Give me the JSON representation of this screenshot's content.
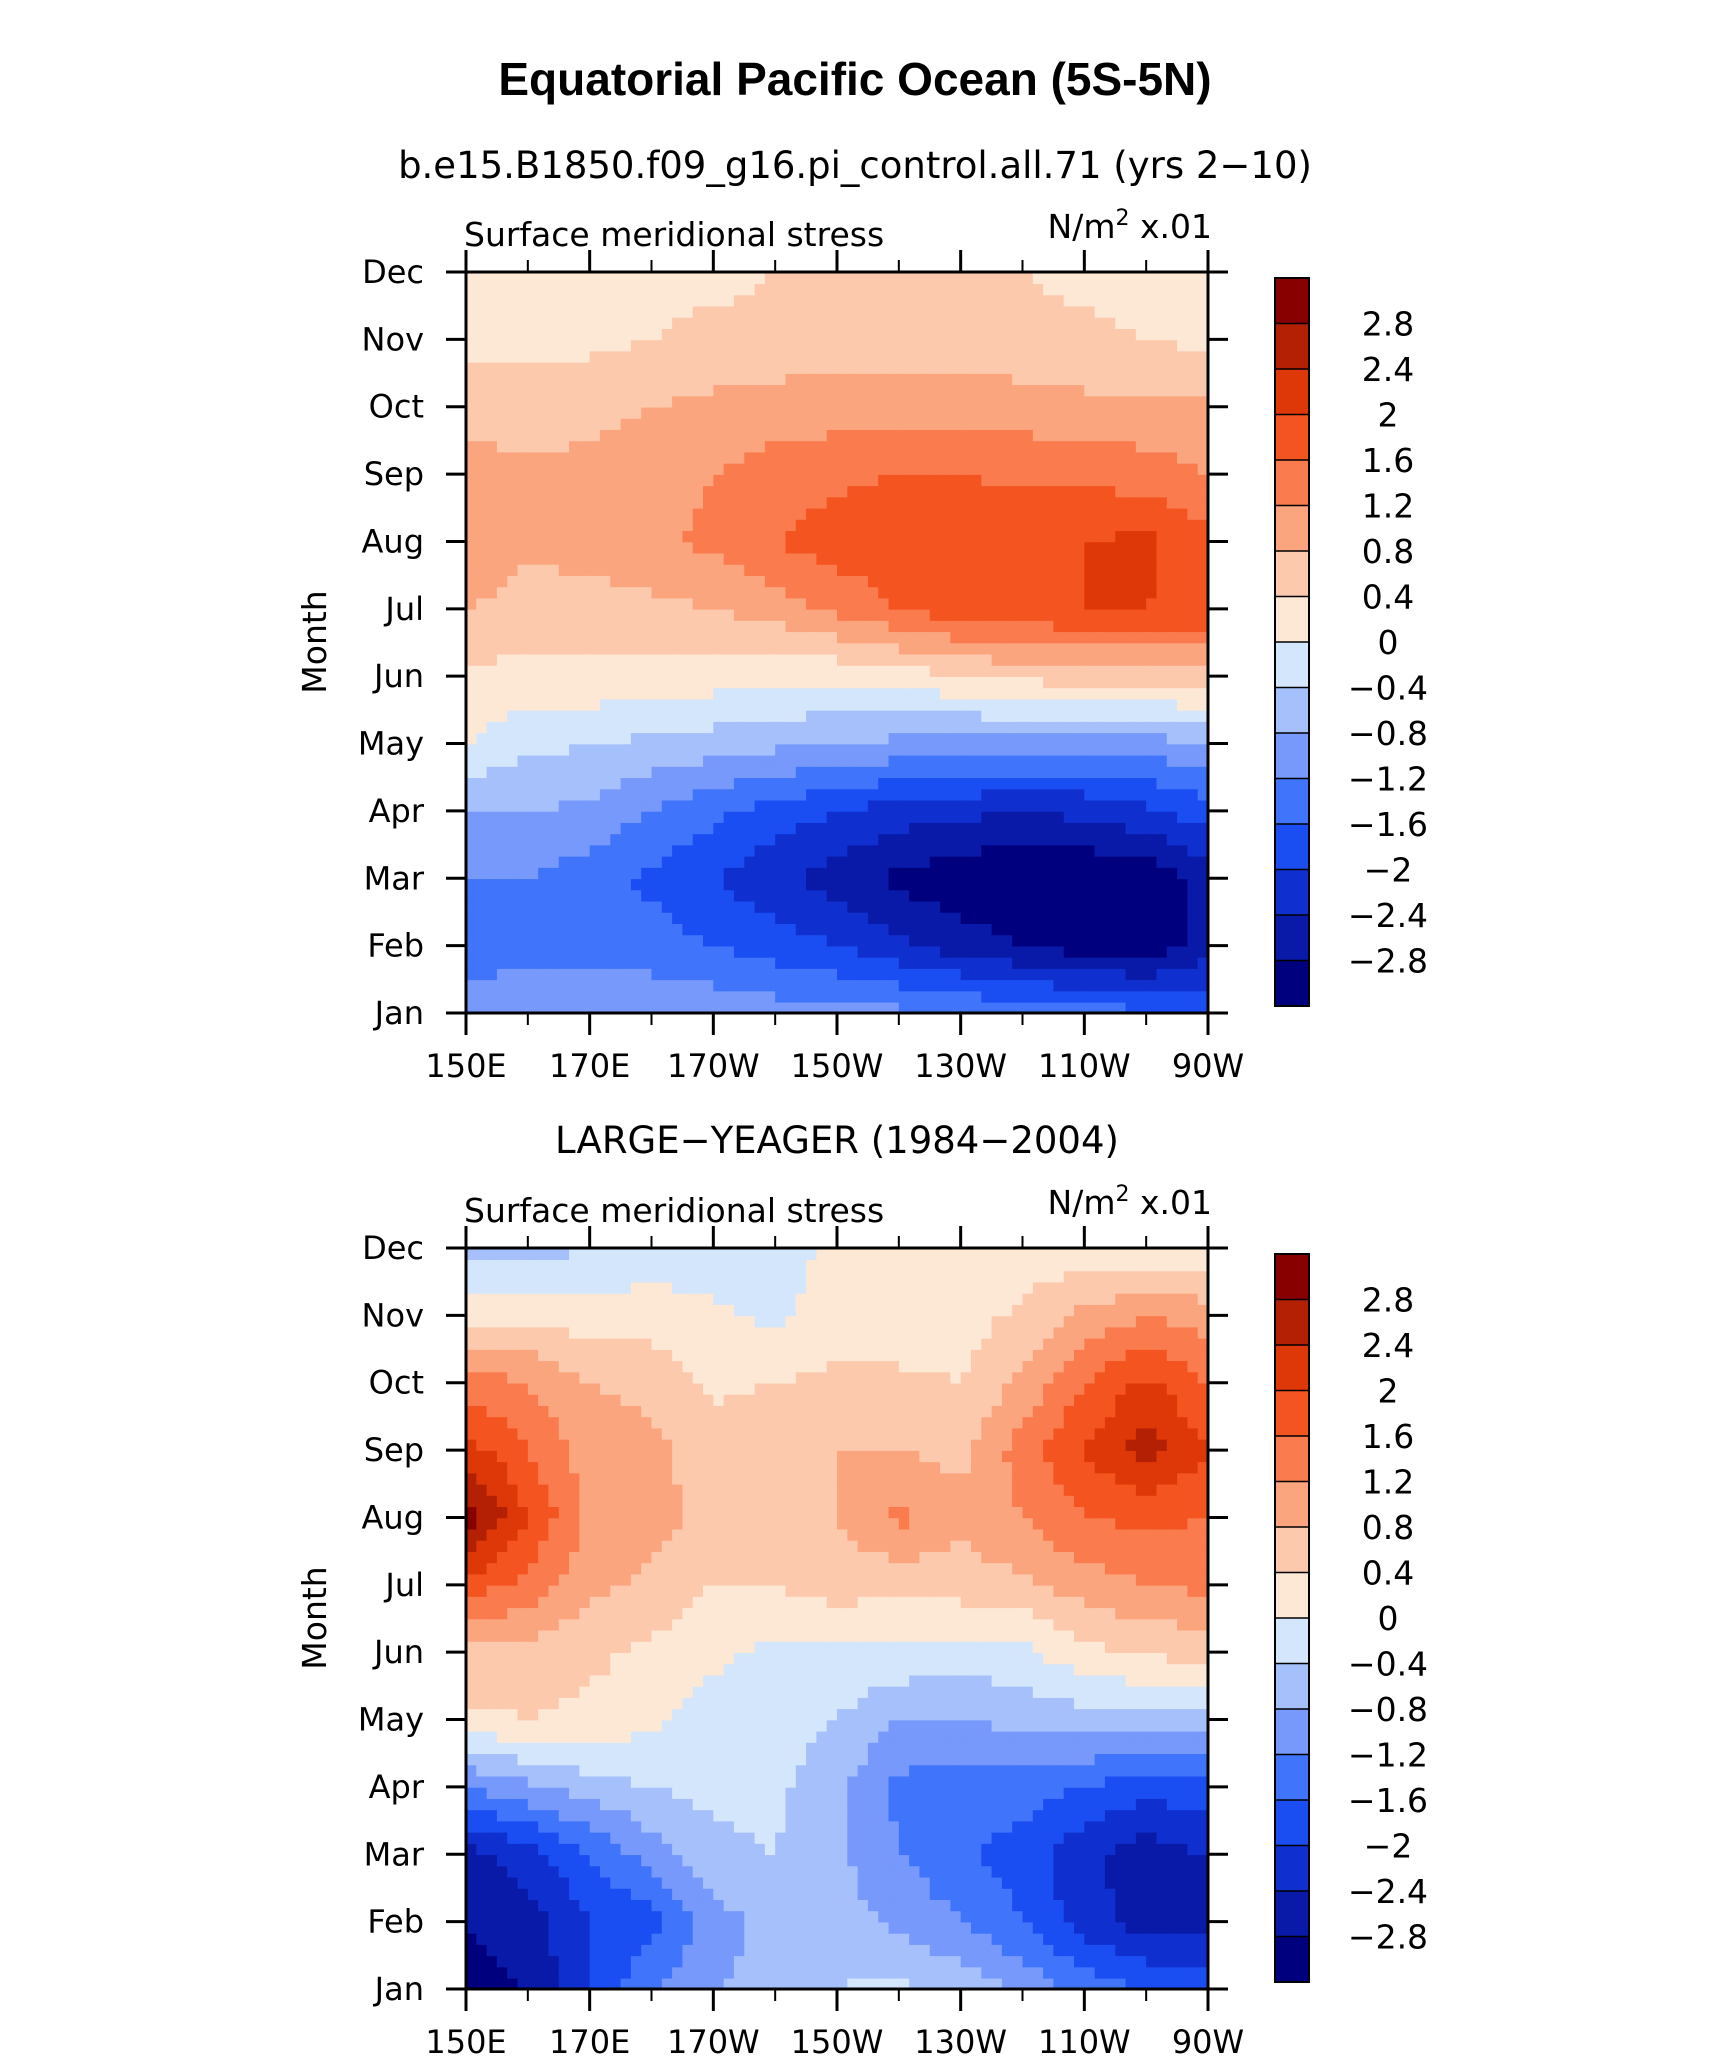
{
  "chart_data": {
    "type": "heatmap",
    "title": "Equatorial Pacific Ocean (5S-5N)",
    "colorbar": {
      "levels": [
        -3.2,
        -2.8,
        -2.4,
        -2,
        -1.6,
        -1.2,
        -0.8,
        -0.4,
        0,
        0.4,
        0.8,
        1.2,
        1.6,
        2,
        2.4,
        2.8,
        3.2
      ],
      "tick_labels": [
        "−2.8",
        "−2.4",
        "−2",
        "−1.6",
        "−1.2",
        "−0.8",
        "−0.4",
        "0",
        "0.4",
        "0.8",
        "1.2",
        "1.6",
        "2",
        "2.4",
        "2.8"
      ],
      "tick_values": [
        -2.8,
        -2.4,
        -2,
        -1.6,
        -1.2,
        -0.8,
        -0.4,
        0,
        0.4,
        0.8,
        1.2,
        1.6,
        2,
        2.4,
        2.8
      ],
      "colors": [
        "#00007f",
        "#0a1aa8",
        "#0f30cf",
        "#1a4ef2",
        "#3f74fb",
        "#7799fb",
        "#a6c0fb",
        "#d4e6fb",
        "#fde8d6",
        "#fcc9ad",
        "#fba57f",
        "#fa7b4d",
        "#f4541f",
        "#df3808",
        "#b32004",
        "#890000"
      ]
    },
    "panels": [
      {
        "title": "b.e15.B1850.f09_g16.pi_control.all.71 (yrs 2−10)",
        "left_string": "Surface meridional stress",
        "right_string_unit": "N/m",
        "right_string_sup": "2",
        "right_string_scale": " x.01",
        "ylabel": "Month",
        "x_ticks": [
          "150E",
          "170E",
          "170W",
          "150W",
          "130W",
          "110W",
          "90W"
        ],
        "x_range": [
          150,
          270
        ],
        "y_ticks": [
          "Jan",
          "Feb",
          "Mar",
          "Apr",
          "May",
          "Jun",
          "Jul",
          "Aug",
          "Sep",
          "Oct",
          "Nov",
          "Dec"
        ],
        "longitudes": [
          150,
          160,
          170,
          180,
          190,
          200,
          210,
          220,
          230,
          240,
          250,
          260,
          270
        ],
        "values": [
          [
            -1.0,
            -1.0,
            -0.9,
            -0.9,
            -0.9,
            -1.0,
            -1.0,
            -1.1,
            -1.2,
            -1.3,
            -1.4,
            -1.5,
            -1.6
          ],
          [
            -1.4,
            -1.3,
            -1.3,
            -1.4,
            -1.6,
            -1.8,
            -2.0,
            -2.3,
            -2.6,
            -2.8,
            -3.0,
            -3.1,
            -2.6
          ],
          [
            -1.2,
            -1.2,
            -1.4,
            -1.7,
            -2.0,
            -2.3,
            -2.6,
            -2.9,
            -3.1,
            -3.2,
            -3.2,
            -3.1,
            -2.6
          ],
          [
            -0.8,
            -0.8,
            -0.9,
            -1.2,
            -1.5,
            -1.8,
            -2.0,
            -2.2,
            -2.3,
            -2.4,
            -2.3,
            -2.1,
            -1.8
          ],
          [
            0.0,
            -0.3,
            -0.4,
            -0.5,
            -0.6,
            -0.7,
            -0.8,
            -0.9,
            -1.0,
            -1.0,
            -1.1,
            -1.0,
            -0.8
          ],
          [
            0.3,
            0.3,
            0.3,
            0.3,
            0.2,
            0.1,
            0.1,
            0.2,
            0.4,
            0.5,
            0.6,
            0.6,
            0.7
          ],
          [
            0.8,
            0.6,
            0.6,
            0.7,
            0.8,
            1.0,
            1.3,
            1.6,
            1.8,
            1.9,
            2.0,
            2.0,
            1.9
          ],
          [
            1.2,
            0.9,
            1.0,
            1.1,
            1.3,
            1.6,
            1.8,
            1.9,
            1.9,
            1.9,
            2.0,
            2.1,
            1.7
          ],
          [
            1.0,
            0.9,
            0.9,
            1.0,
            1.2,
            1.4,
            1.5,
            1.6,
            1.6,
            1.5,
            1.5,
            1.4,
            1.2
          ],
          [
            0.6,
            0.6,
            0.7,
            0.8,
            0.9,
            1.0,
            1.0,
            1.0,
            1.0,
            1.0,
            0.9,
            0.9,
            0.9
          ],
          [
            0.3,
            0.3,
            0.3,
            0.4,
            0.5,
            0.5,
            0.6,
            0.6,
            0.6,
            0.5,
            0.5,
            0.4,
            0.3
          ],
          [
            0.0,
            0.2,
            0.2,
            0.3,
            0.3,
            0.4,
            0.4,
            0.5,
            0.4,
            0.4,
            0.3,
            0.2,
            0.2
          ]
        ]
      },
      {
        "title": "LARGE−YEAGER (1984−2004)",
        "left_string": "Surface meridional stress",
        "right_string_unit": "N/m",
        "right_string_sup": "2",
        "right_string_scale": " x.01",
        "ylabel": "Month",
        "x_ticks": [
          "150E",
          "170E",
          "170W",
          "150W",
          "130W",
          "110W",
          "90W"
        ],
        "x_range": [
          150,
          270
        ],
        "y_ticks": [
          "Jan",
          "Feb",
          "Mar",
          "Apr",
          "May",
          "Jun",
          "Jul",
          "Aug",
          "Sep",
          "Oct",
          "Nov",
          "Dec"
        ],
        "longitudes": [
          150,
          160,
          170,
          180,
          190,
          200,
          210,
          220,
          230,
          240,
          250,
          260,
          270
        ],
        "values": [
          [
            -3.0,
            -2.8,
            -2.0,
            -1.2,
            -0.8,
            -0.7,
            -0.4,
            -0.3,
            -0.5,
            -0.9,
            -1.3,
            -1.6,
            -1.8
          ],
          [
            -2.8,
            -2.6,
            -2.0,
            -1.8,
            -1.0,
            -0.6,
            -0.6,
            -0.9,
            -1.2,
            -1.6,
            -2.2,
            -2.6,
            -2.5
          ],
          [
            -2.6,
            -2.2,
            -1.6,
            -1.0,
            -0.5,
            -0.4,
            -0.7,
            -1.2,
            -1.5,
            -1.8,
            -2.3,
            -2.6,
            -2.4
          ],
          [
            -1.2,
            -0.9,
            -0.6,
            -0.4,
            -0.3,
            -0.3,
            -0.7,
            -1.3,
            -1.5,
            -1.4,
            -1.6,
            -1.9,
            -1.7
          ],
          [
            0.3,
            0.4,
            0.3,
            0.1,
            -0.2,
            -0.2,
            -0.4,
            -0.8,
            -0.8,
            -0.7,
            -0.6,
            -0.5,
            -0.5
          ],
          [
            0.7,
            0.6,
            0.5,
            0.3,
            0.1,
            -0.1,
            -0.1,
            -0.1,
            -0.2,
            -0.1,
            0.3,
            0.4,
            0.6
          ],
          [
            1.8,
            1.5,
            0.9,
            0.7,
            0.4,
            0.4,
            0.6,
            0.5,
            0.6,
            0.7,
            1.0,
            1.2,
            1.3
          ],
          [
            3.1,
            2.0,
            1.1,
            1.0,
            0.6,
            0.6,
            0.8,
            1.3,
            0.9,
            1.2,
            1.6,
            1.7,
            1.6
          ],
          [
            2.2,
            1.6,
            1.0,
            0.9,
            0.6,
            0.8,
            0.8,
            0.8,
            0.7,
            1.4,
            2.0,
            2.6,
            2.0
          ],
          [
            1.4,
            1.2,
            0.8,
            0.7,
            0.3,
            0.4,
            0.5,
            0.5,
            0.4,
            0.9,
            1.6,
            2.1,
            1.6
          ],
          [
            0.3,
            0.3,
            0.2,
            0.2,
            0.1,
            -0.1,
            0.2,
            0.1,
            0.2,
            0.5,
            0.9,
            1.2,
            1.0
          ],
          [
            -0.6,
            -0.6,
            -0.4,
            -0.2,
            -0.3,
            -0.2,
            0.1,
            0.0,
            0.2,
            0.1,
            0.2,
            0.0,
            0.1
          ]
        ]
      }
    ]
  }
}
